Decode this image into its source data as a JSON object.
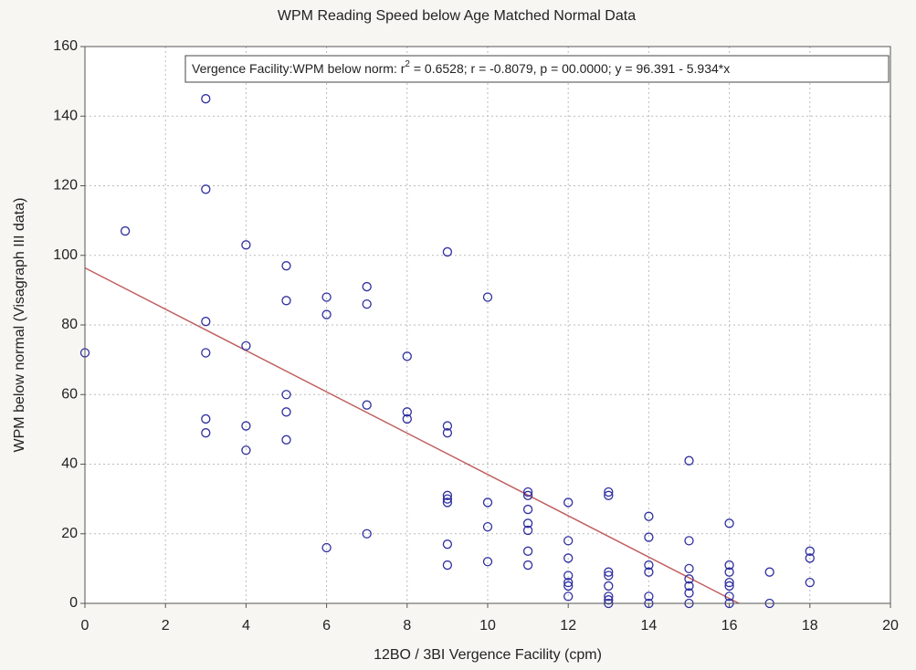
{
  "chart_data": {
    "type": "scatter",
    "title": "WPM Reading Speed below Age Matched Normal Data",
    "x_label": "12BO / 3BI Vergence Facility (cpm)",
    "y_label": "WPM below normal (Visagraph III data)",
    "annotation": {
      "before": "Vergence Facility:WPM below norm:  r",
      "sup": "2",
      "after": " = 0.6528;  r = -0.8079, p = 00.0000;  y = 96.391 - 5.934*x"
    },
    "xlim": [
      0,
      20
    ],
    "xticks": [
      0,
      2,
      4,
      6,
      8,
      10,
      12,
      14,
      16,
      18,
      20
    ],
    "ylim": [
      0,
      160
    ],
    "yticks": [
      0,
      20,
      40,
      60,
      80,
      100,
      120,
      140,
      160
    ],
    "grid": true,
    "series": [
      {
        "color": "#2f2fa0",
        "x": [
          0,
          1,
          3,
          3,
          3,
          3,
          3,
          3,
          4,
          4,
          4,
          4,
          5,
          5,
          5,
          5,
          5,
          6,
          6,
          6,
          7,
          7,
          7,
          7,
          8,
          8,
          8,
          9,
          9,
          9,
          9,
          9,
          9,
          9,
          9,
          10,
          10,
          10,
          10,
          11,
          11,
          11,
          11,
          11,
          11,
          11,
          12,
          12,
          12,
          12,
          12,
          12,
          12,
          13,
          13,
          13,
          13,
          13,
          13,
          13,
          13,
          14,
          14,
          14,
          14,
          14,
          14,
          15,
          15,
          15,
          15,
          15,
          15,
          15,
          16,
          16,
          16,
          16,
          16,
          16,
          16,
          17,
          17,
          18,
          18,
          18
        ],
        "values": [
          72,
          107,
          145,
          119,
          81,
          72,
          53,
          49,
          103,
          74,
          51,
          44,
          97,
          87,
          60,
          55,
          47,
          88,
          83,
          16,
          91,
          86,
          57,
          20,
          71,
          55,
          53,
          101,
          51,
          49,
          31,
          30,
          29,
          17,
          11,
          88,
          29,
          22,
          12,
          32,
          31,
          27,
          23,
          21,
          15,
          11,
          29,
          18,
          13,
          8,
          6,
          5,
          2,
          32,
          31,
          9,
          8,
          5,
          2,
          1,
          0,
          25,
          19,
          11,
          9,
          2,
          0,
          41,
          18,
          10,
          7,
          5,
          3,
          0,
          23,
          11,
          9,
          6,
          5,
          2,
          0,
          9,
          0,
          15,
          13,
          6
        ]
      }
    ],
    "fit_line": {
      "color": "#c06060",
      "x": [
        0,
        16.24
      ],
      "values": [
        96.391,
        0
      ]
    }
  }
}
